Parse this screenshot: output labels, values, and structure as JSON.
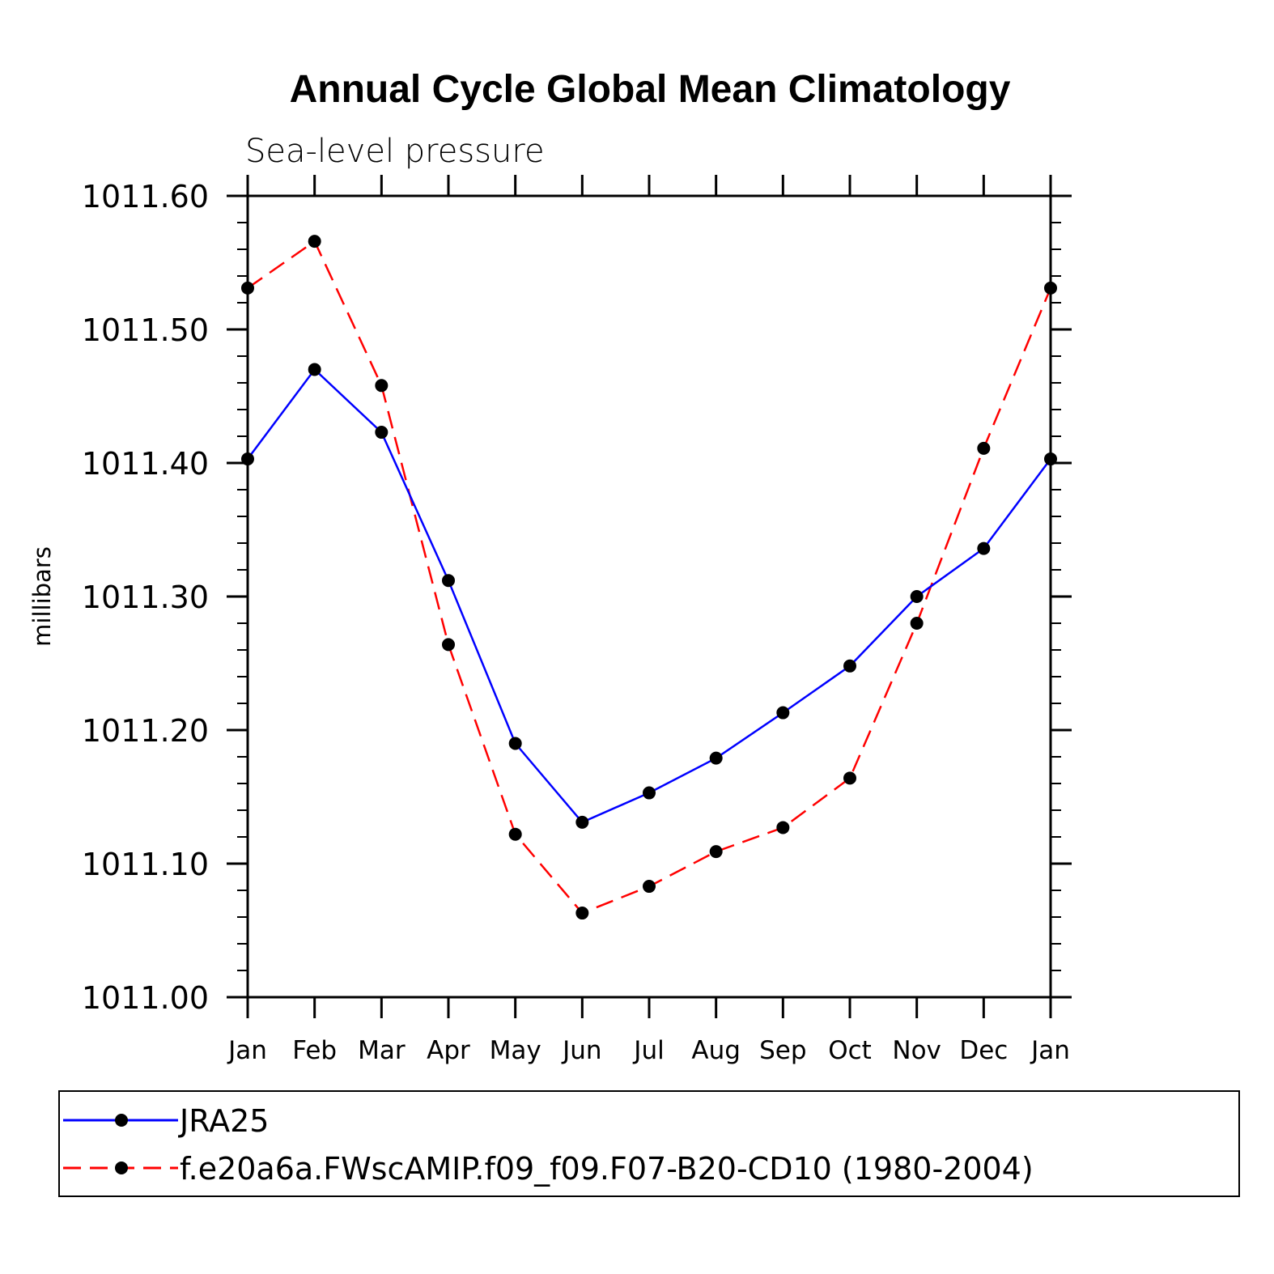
{
  "chart_data": {
    "type": "line",
    "title": "Annual Cycle Global Mean Climatology",
    "subtitle": "Sea-level pressure",
    "xlabel": "",
    "ylabel": "millibars",
    "categories": [
      "Jan",
      "Feb",
      "Mar",
      "Apr",
      "May",
      "Jun",
      "Jul",
      "Aug",
      "Sep",
      "Oct",
      "Nov",
      "Dec",
      "Jan"
    ],
    "yticks": [
      "1011.00",
      "1011.10",
      "1011.20",
      "1011.30",
      "1011.40",
      "1011.50",
      "1011.60"
    ],
    "ylim": [
      1011.0,
      1011.6
    ],
    "series": [
      {
        "name": "JRA25",
        "color": "#0000ff",
        "dash": "solid",
        "values": [
          1011.403,
          1011.47,
          1011.423,
          1011.312,
          1011.19,
          1011.131,
          1011.153,
          1011.179,
          1011.213,
          1011.248,
          1011.3,
          1011.336,
          1011.403
        ]
      },
      {
        "name": "f.e20a6a.FWscAMIP.f09_f09.F07-B20-CD10 (1980-2004)",
        "color": "#ff0000",
        "dash": "dashed",
        "values": [
          1011.531,
          1011.566,
          1011.458,
          1011.264,
          1011.122,
          1011.063,
          1011.083,
          1011.109,
          1011.127,
          1011.164,
          1011.28,
          1011.411,
          1011.531
        ]
      }
    ],
    "legend_position": "bottom"
  }
}
